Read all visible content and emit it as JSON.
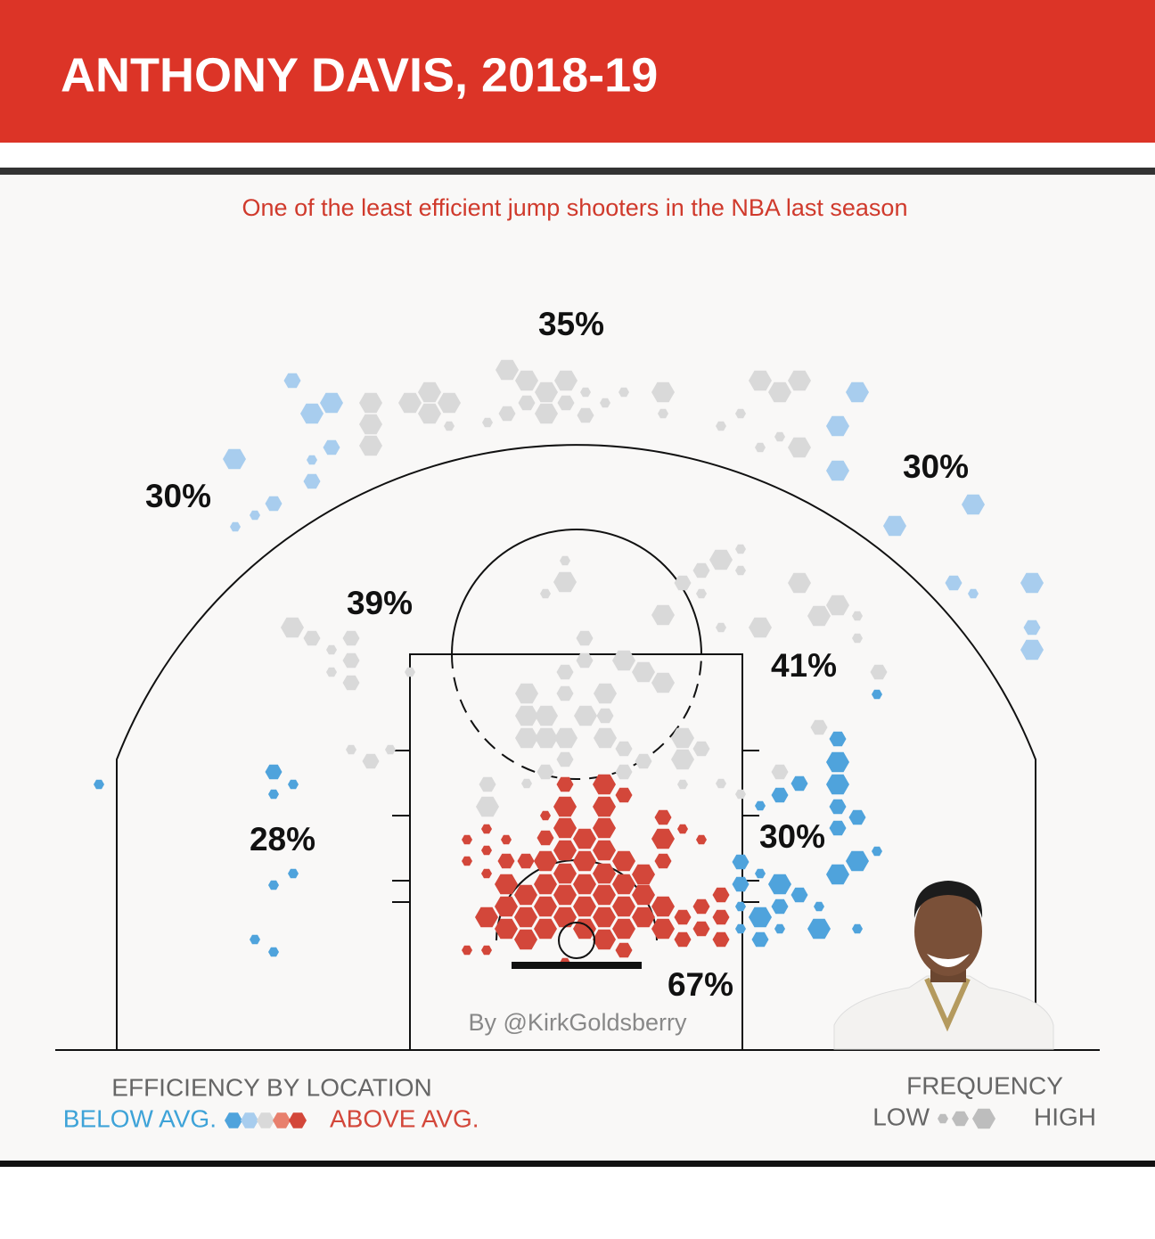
{
  "chart_data": {
    "type": "hexbin",
    "title": "ANTHONY DAVIS, 2018-19",
    "subtitle": "One of the least efficient jump shooters in the NBA last season",
    "credit": "By @KirkGoldsberry",
    "zone_values": [
      35,
      30,
      30,
      39,
      41,
      28,
      30,
      67
    ],
    "zone_value_labels": [
      "35%",
      "30%",
      "30%",
      "39%",
      "41%",
      "28%",
      "30%",
      "67%"
    ],
    "legend": {
      "efficiency_title": "EFFICIENCY BY LOCATION",
      "below": "BELOW AVG.",
      "above": "ABOVE AVG.",
      "frequency_title": "FREQUENCY",
      "low": "LOW",
      "high": "HIGH"
    },
    "levels": [
      -2,
      -1,
      0,
      1,
      2
    ],
    "colors": [
      "#4fa3dc",
      "#a8cdee",
      "#d9d9d9",
      "#e8806d",
      "#d3473a"
    ],
    "sizes": [
      1,
      2,
      3
    ],
    "xlim": [
      0,
      1172
    ],
    "ylim": [
      0,
      880
    ],
    "hexes": [
      [
        266,
        751,
        2,
        -1
      ],
      [
        288,
        714,
        3,
        -1
      ],
      [
        310,
        726,
        3,
        -1
      ],
      [
        310,
        676,
        2,
        -1
      ],
      [
        288,
        662,
        1,
        -1
      ],
      [
        288,
        638,
        2,
        -1
      ],
      [
        201,
        663,
        3,
        -1
      ],
      [
        245,
        613,
        2,
        -1
      ],
      [
        224,
        600,
        1,
        -1
      ],
      [
        202,
        587,
        1,
        -1
      ],
      [
        354,
        726,
        3,
        0
      ],
      [
        354,
        702,
        3,
        0
      ],
      [
        354,
        678,
        3,
        0
      ],
      [
        398,
        726,
        3,
        0
      ],
      [
        420,
        738,
        3,
        0
      ],
      [
        442,
        726,
        3,
        0
      ],
      [
        420,
        714,
        3,
        0
      ],
      [
        442,
        700,
        1,
        0
      ],
      [
        485,
        704,
        1,
        0
      ],
      [
        507,
        714,
        2,
        0
      ],
      [
        507,
        763,
        3,
        0
      ],
      [
        529,
        751,
        3,
        0
      ],
      [
        551,
        738,
        3,
        0
      ],
      [
        573,
        751,
        3,
        0
      ],
      [
        529,
        726,
        2,
        0
      ],
      [
        551,
        714,
        3,
        0
      ],
      [
        573,
        726,
        2,
        0
      ],
      [
        595,
        738,
        1,
        0
      ],
      [
        595,
        712,
        2,
        0
      ],
      [
        617,
        726,
        1,
        0
      ],
      [
        638,
        738,
        1,
        0
      ],
      [
        682,
        738,
        3,
        0
      ],
      [
        682,
        714,
        1,
        0
      ],
      [
        747,
        700,
        1,
        0
      ],
      [
        769,
        714,
        1,
        0
      ],
      [
        791,
        751,
        3,
        0
      ],
      [
        813,
        738,
        3,
        0
      ],
      [
        835,
        751,
        3,
        0
      ],
      [
        791,
        676,
        1,
        0
      ],
      [
        813,
        688,
        1,
        0
      ],
      [
        835,
        676,
        3,
        0
      ],
      [
        900,
        738,
        3,
        -1
      ],
      [
        878,
        700,
        3,
        -1
      ],
      [
        878,
        650,
        3,
        -1
      ],
      [
        942,
        588,
        3,
        -1
      ],
      [
        1030,
        612,
        3,
        -1
      ],
      [
        1008,
        524,
        2,
        -1
      ],
      [
        1030,
        512,
        1,
        -1
      ],
      [
        1096,
        524,
        3,
        -1
      ],
      [
        1096,
        474,
        2,
        -1
      ],
      [
        1096,
        449,
        3,
        -1
      ],
      [
        572,
        549,
        1,
        0
      ],
      [
        572,
        525,
        3,
        0
      ],
      [
        550,
        512,
        1,
        0
      ],
      [
        747,
        550,
        3,
        0
      ],
      [
        769,
        562,
        1,
        0
      ],
      [
        769,
        538,
        1,
        0
      ],
      [
        725,
        538,
        2,
        0
      ],
      [
        704,
        524,
        2,
        0
      ],
      [
        725,
        512,
        1,
        0
      ],
      [
        682,
        488,
        3,
        0
      ],
      [
        747,
        474,
        1,
        0
      ],
      [
        835,
        524,
        3,
        0
      ],
      [
        857,
        487,
        3,
        0
      ],
      [
        878,
        499,
        3,
        0
      ],
      [
        900,
        487,
        1,
        0
      ],
      [
        900,
        462,
        1,
        0
      ],
      [
        791,
        474,
        3,
        0
      ],
      [
        266,
        474,
        3,
        0
      ],
      [
        288,
        462,
        2,
        0
      ],
      [
        310,
        449,
        1,
        0
      ],
      [
        332,
        462,
        2,
        0
      ],
      [
        332,
        437,
        2,
        0
      ],
      [
        310,
        424,
        1,
        0
      ],
      [
        332,
        412,
        2,
        0
      ],
      [
        398,
        424,
        1,
        0
      ],
      [
        594,
        462,
        2,
        0
      ],
      [
        594,
        437,
        2,
        0
      ],
      [
        572,
        424,
        2,
        0
      ],
      [
        638,
        437,
        3,
        0
      ],
      [
        660,
        424,
        3,
        0
      ],
      [
        682,
        412,
        3,
        0
      ],
      [
        572,
        400,
        2,
        0
      ],
      [
        617,
        400,
        3,
        0
      ],
      [
        529,
        400,
        3,
        0
      ],
      [
        551,
        375,
        3,
        0
      ],
      [
        529,
        375,
        3,
        0
      ],
      [
        595,
        375,
        3,
        0
      ],
      [
        617,
        375,
        2,
        0
      ],
      [
        529,
        350,
        3,
        0
      ],
      [
        551,
        350,
        3,
        0
      ],
      [
        573,
        350,
        3,
        0
      ],
      [
        617,
        350,
        3,
        0
      ],
      [
        704,
        350,
        3,
        0
      ],
      [
        704,
        326,
        3,
        0
      ],
      [
        725,
        338,
        2,
        0
      ],
      [
        638,
        338,
        2,
        0
      ],
      [
        550,
        312,
        2,
        0
      ],
      [
        572,
        326,
        2,
        0
      ],
      [
        660,
        324,
        2,
        0
      ],
      [
        638,
        312,
        2,
        0
      ],
      [
        332,
        337,
        1,
        0
      ],
      [
        354,
        324,
        2,
        0
      ],
      [
        376,
        337,
        1,
        0
      ],
      [
        485,
        298,
        2,
        0
      ],
      [
        485,
        273,
        3,
        0
      ],
      [
        529,
        299,
        1,
        0
      ],
      [
        924,
        424,
        2,
        0
      ],
      [
        857,
        362,
        2,
        0
      ],
      [
        769,
        287,
        1,
        0
      ],
      [
        747,
        299,
        1,
        0
      ],
      [
        813,
        312,
        2,
        0
      ],
      [
        704,
        298,
        1,
        0
      ],
      [
        922,
        399,
        1,
        -2
      ],
      [
        878,
        349,
        2,
        -2
      ],
      [
        878,
        323,
        3,
        -2
      ],
      [
        878,
        298,
        3,
        -2
      ],
      [
        878,
        273,
        2,
        -2
      ],
      [
        900,
        261,
        2,
        -2
      ],
      [
        878,
        249,
        2,
        -2
      ],
      [
        900,
        212,
        3,
        -2
      ],
      [
        878,
        197,
        3,
        -2
      ],
      [
        922,
        223,
        1,
        -2
      ],
      [
        835,
        299,
        2,
        -2
      ],
      [
        813,
        286,
        2,
        -2
      ],
      [
        791,
        274,
        1,
        -2
      ],
      [
        769,
        211,
        2,
        -2
      ],
      [
        769,
        186,
        2,
        -2
      ],
      [
        791,
        198,
        1,
        -2
      ],
      [
        813,
        186,
        3,
        -2
      ],
      [
        835,
        174,
        2,
        -2
      ],
      [
        813,
        161,
        2,
        -2
      ],
      [
        791,
        149,
        3,
        -2
      ],
      [
        769,
        161,
        1,
        -2
      ],
      [
        769,
        136,
        1,
        -2
      ],
      [
        791,
        124,
        2,
        -2
      ],
      [
        813,
        136,
        1,
        -2
      ],
      [
        857,
        136,
        3,
        -2
      ],
      [
        900,
        136,
        1,
        -2
      ],
      [
        857,
        161,
        1,
        -2
      ],
      [
        49,
        298,
        1,
        -2
      ],
      [
        245,
        312,
        2,
        -2
      ],
      [
        245,
        287,
        1,
        -2
      ],
      [
        267,
        298,
        1,
        -2
      ],
      [
        245,
        185,
        1,
        -2
      ],
      [
        267,
        198,
        1,
        -2
      ],
      [
        224,
        124,
        1,
        -2
      ],
      [
        245,
        110,
        1,
        -2
      ],
      [
        572,
        298,
        2,
        2
      ],
      [
        572,
        273,
        3,
        2
      ],
      [
        572,
        249,
        3,
        2
      ],
      [
        594,
        237,
        3,
        2
      ],
      [
        616,
        298,
        3,
        2
      ],
      [
        616,
        273,
        3,
        2
      ],
      [
        638,
        286,
        2,
        2
      ],
      [
        616,
        249,
        3,
        2
      ],
      [
        550,
        263,
        1,
        2
      ],
      [
        550,
        238,
        2,
        2
      ],
      [
        572,
        224,
        3,
        2
      ],
      [
        550,
        212,
        3,
        2
      ],
      [
        528,
        212,
        2,
        2
      ],
      [
        616,
        224,
        3,
        2
      ],
      [
        638,
        212,
        3,
        2
      ],
      [
        682,
        261,
        2,
        2
      ],
      [
        682,
        237,
        3,
        2
      ],
      [
        682,
        212,
        2,
        2
      ],
      [
        660,
        197,
        3,
        2
      ],
      [
        638,
        186,
        3,
        2
      ],
      [
        616,
        198,
        3,
        2
      ],
      [
        594,
        212,
        3,
        2
      ],
      [
        572,
        198,
        3,
        2
      ],
      [
        550,
        186,
        3,
        2
      ],
      [
        528,
        174,
        3,
        2
      ],
      [
        506,
        186,
        3,
        2
      ],
      [
        594,
        186,
        3,
        2
      ],
      [
        572,
        174,
        3,
        2
      ],
      [
        550,
        161,
        3,
        2
      ],
      [
        528,
        149,
        3,
        2
      ],
      [
        506,
        161,
        3,
        2
      ],
      [
        484,
        149,
        3,
        2
      ],
      [
        506,
        136,
        3,
        2
      ],
      [
        528,
        124,
        3,
        2
      ],
      [
        550,
        136,
        3,
        2
      ],
      [
        572,
        149,
        3,
        2
      ],
      [
        594,
        161,
        3,
        2
      ],
      [
        616,
        174,
        3,
        2
      ],
      [
        638,
        161,
        3,
        2
      ],
      [
        660,
        174,
        3,
        2
      ],
      [
        682,
        161,
        3,
        2
      ],
      [
        616,
        149,
        3,
        2
      ],
      [
        638,
        136,
        3,
        2
      ],
      [
        660,
        149,
        3,
        2
      ],
      [
        682,
        136,
        3,
        2
      ],
      [
        704,
        149,
        2,
        2
      ],
      [
        725,
        161,
        2,
        2
      ],
      [
        747,
        174,
        2,
        2
      ],
      [
        725,
        136,
        2,
        2
      ],
      [
        704,
        124,
        2,
        2
      ],
      [
        747,
        149,
        2,
        2
      ],
      [
        747,
        124,
        2,
        2
      ],
      [
        594,
        136,
        3,
        2
      ],
      [
        616,
        124,
        3,
        2
      ],
      [
        638,
        112,
        2,
        2
      ],
      [
        506,
        212,
        2,
        2
      ],
      [
        484,
        224,
        1,
        2
      ],
      [
        462,
        236,
        1,
        2
      ],
      [
        462,
        212,
        1,
        2
      ],
      [
        484,
        198,
        1,
        2
      ],
      [
        506,
        236,
        1,
        2
      ],
      [
        484,
        248,
        1,
        2
      ],
      [
        704,
        248,
        1,
        2
      ],
      [
        725,
        236,
        1,
        2
      ],
      [
        484,
        112,
        1,
        2
      ],
      [
        462,
        112,
        1,
        2
      ],
      [
        572,
        98,
        1,
        2
      ]
    ]
  }
}
